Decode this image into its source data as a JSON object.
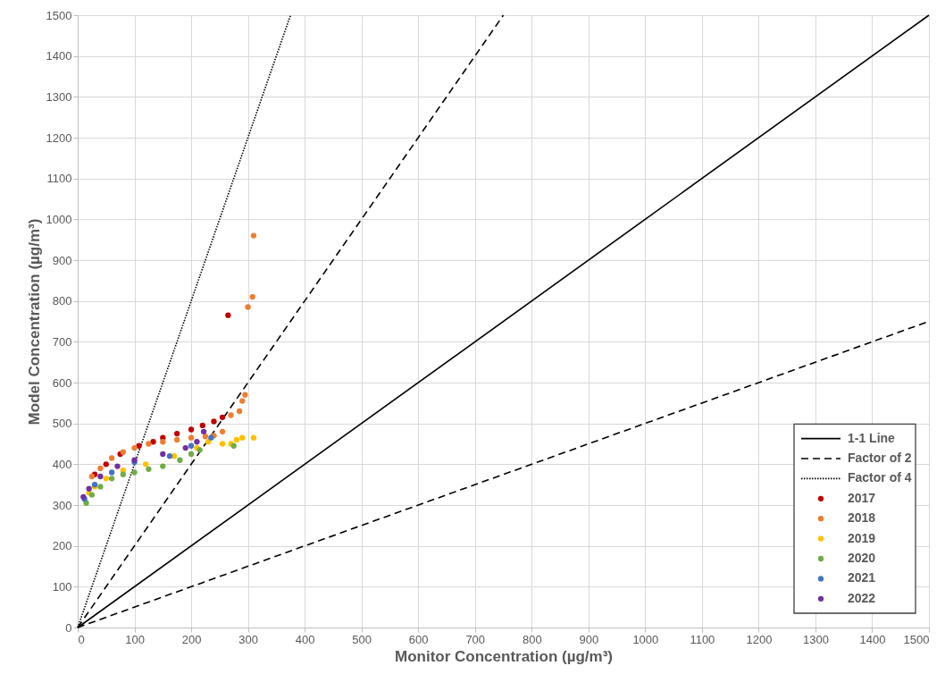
{
  "chart_data": {
    "type": "scatter",
    "xlabel": "Monitor Concentration (µg/m³)",
    "ylabel": "Model Concentration (µg/m³)",
    "xlim": [
      0,
      1500
    ],
    "ylim": [
      0,
      1500
    ],
    "xticks": [
      0,
      100,
      200,
      300,
      400,
      500,
      600,
      700,
      800,
      900,
      1000,
      1100,
      1200,
      1300,
      1400,
      1500
    ],
    "yticks": [
      0,
      100,
      200,
      300,
      400,
      500,
      600,
      700,
      800,
      900,
      1000,
      1100,
      1200,
      1300,
      1400,
      1500
    ],
    "grid": true,
    "legend": "bottom right",
    "series": [
      {
        "name": "1-1 Line",
        "type": "line",
        "line_style": "solid",
        "color": "#000000",
        "x": [
          0,
          1500
        ],
        "values": [
          0,
          1500
        ]
      },
      {
        "name": "Factor of 2",
        "type": "line",
        "line_style": "dashed",
        "color": "#000000",
        "x": [
          0,
          750
        ],
        "values": [
          0,
          1500
        ]
      },
      {
        "type": "line",
        "line_style": "dashed",
        "color": "#000000",
        "x": [
          0,
          1500
        ],
        "values": [
          0,
          750
        ]
      },
      {
        "name": "Factor of 4",
        "type": "line",
        "line_style": "dotted",
        "color": "#000000",
        "x": [
          0,
          375
        ],
        "values": [
          0,
          1500
        ]
      },
      {
        "name": "2017",
        "marker": "circle",
        "color": "#c00000",
        "x": [
          30,
          50,
          75,
          108,
          133,
          150,
          175,
          200,
          220,
          240,
          255,
          265
        ],
        "values": [
          375,
          400,
          425,
          445,
          455,
          465,
          475,
          485,
          495,
          505,
          515,
          765
        ]
      },
      {
        "name": "2018",
        "marker": "circle",
        "color": "#ed7d31",
        "x": [
          25,
          40,
          60,
          80,
          100,
          125,
          150,
          175,
          200,
          225,
          240,
          255,
          270,
          285,
          290,
          295,
          300,
          308,
          310
        ],
        "values": [
          370,
          390,
          415,
          430,
          440,
          450,
          455,
          460,
          465,
          468,
          470,
          480,
          520,
          530,
          555,
          570,
          785,
          810,
          960
        ]
      },
      {
        "name": "2019",
        "marker": "circle",
        "color": "#ffc000",
        "x": [
          20,
          30,
          50,
          80,
          120,
          170,
          210,
          230,
          255,
          270,
          280,
          290,
          310
        ],
        "values": [
          330,
          345,
          365,
          385,
          400,
          420,
          440,
          455,
          450,
          450,
          460,
          465,
          465
        ]
      },
      {
        "name": "2020",
        "marker": "circle",
        "color": "#70ad47",
        "x": [
          15,
          25,
          40,
          60,
          80,
          100,
          125,
          150,
          180,
          200,
          215,
          275
        ],
        "values": [
          305,
          325,
          345,
          365,
          375,
          380,
          388,
          395,
          410,
          425,
          435,
          445
        ]
      },
      {
        "name": "2021",
        "marker": "circle",
        "color": "#4472c4",
        "x": [
          12,
          30,
          60,
          100,
          162,
          200,
          235
        ],
        "values": [
          315,
          350,
          380,
          405,
          420,
          445,
          465
        ]
      },
      {
        "name": "2022",
        "marker": "circle",
        "color": "#7030a0",
        "x": [
          10,
          20,
          40,
          70,
          100,
          150,
          190,
          210,
          222
        ],
        "values": [
          320,
          340,
          370,
          395,
          410,
          425,
          440,
          455,
          480
        ]
      }
    ]
  }
}
